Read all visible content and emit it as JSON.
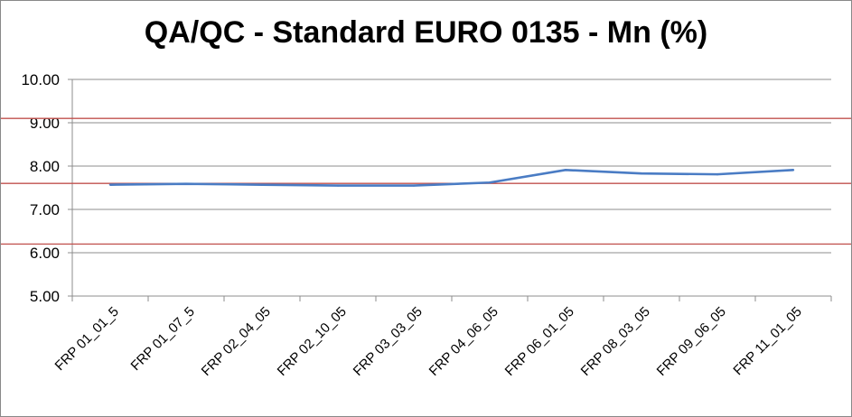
{
  "chart_data": {
    "type": "line",
    "title": "QA/QC - Standard EURO 0135 - Mn (%)",
    "xlabel": "",
    "ylabel": "",
    "categories": [
      "FRP 01_01_5",
      "FRP 01_07_5",
      "FRP 02_04_05",
      "FRP 02_10_05",
      "FRP 03_03_05",
      "FRP 04_06_05",
      "FRP 06_01_05",
      "FRP 08_03_05",
      "FRP 09_06_05",
      "FRP 11_01_05"
    ],
    "series": [
      {
        "values": [
          7.57,
          7.59,
          7.57,
          7.55,
          7.55,
          7.62,
          7.91,
          7.83,
          7.81,
          7.91
        ]
      }
    ],
    "ylim": [
      5.0,
      10.0
    ],
    "yticks": [
      5.0,
      6.0,
      7.0,
      8.0,
      9.0,
      10.0
    ],
    "ytick_labels": [
      "5.00",
      "6.00",
      "7.00",
      "8.00",
      "9.00",
      "10.00"
    ],
    "reference_lines": [
      9.1,
      7.6,
      6.2
    ],
    "grid": true,
    "legend": "none",
    "colors": {
      "line": "#4a7cc4",
      "reference": "#c0504d",
      "grid": "#8c8c8c",
      "axis": "#8c8c8c"
    }
  }
}
